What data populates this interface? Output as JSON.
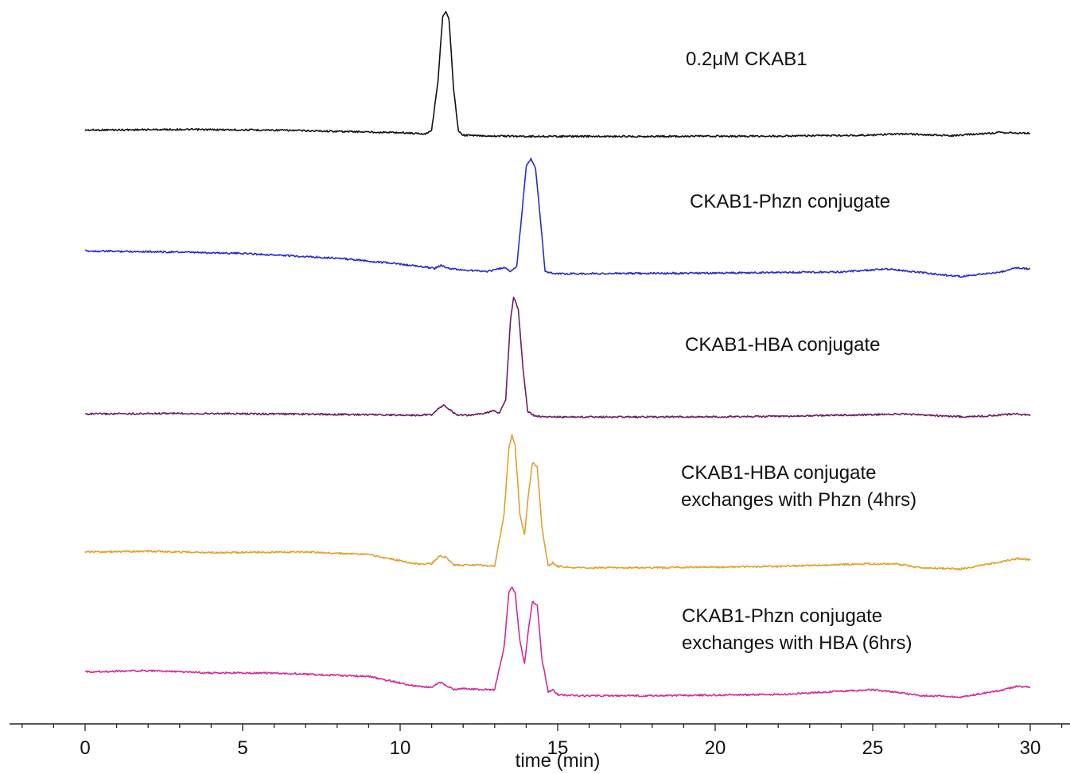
{
  "chart_data": {
    "type": "line",
    "title": "",
    "xlabel": "time (min)",
    "ylabel": "",
    "xlim": [
      -2.45,
      31.3
    ],
    "x_ticks": [
      "0",
      "5",
      "10",
      "15",
      "20",
      "25",
      "30"
    ],
    "x_tick_values": [
      0,
      5,
      10,
      15,
      20,
      25,
      30
    ],
    "grid": false,
    "legend": "none",
    "series": [
      {
        "name": "0.2μM CKAB1",
        "label_lines": [
          "0.2μM CKAB1"
        ],
        "color": "#111111",
        "x": [
          0,
          3,
          6,
          9,
          10,
          10.8,
          11.0,
          11.2,
          11.35,
          11.45,
          11.55,
          11.7,
          11.85,
          12.0,
          12.5,
          14,
          18,
          22,
          25,
          26,
          27.5,
          29,
          30
        ],
        "y": [
          0.06,
          0.065,
          0.06,
          0.045,
          0.04,
          0.03,
          0.06,
          0.45,
          0.96,
          1.0,
          0.94,
          0.38,
          0.05,
          0.02,
          0.015,
          0.01,
          0.01,
          0.012,
          0.02,
          0.03,
          0.015,
          0.04,
          0.035
        ]
      },
      {
        "name": "CKAB1-Phzn conjugate",
        "label_lines": [
          "CKAB1-Phzn conjugate"
        ],
        "color": "#2b2bc8",
        "x": [
          0,
          2,
          5,
          8,
          10,
          11.1,
          11.3,
          11.5,
          12,
          12.8,
          13.3,
          13.5,
          13.7,
          13.85,
          14.0,
          14.15,
          14.3,
          14.45,
          14.6,
          14.9,
          16,
          20,
          24,
          25.5,
          26.5,
          27.8,
          29,
          29.6,
          30
        ],
        "y": [
          0.23,
          0.225,
          0.21,
          0.17,
          0.12,
          0.085,
          0.11,
          0.085,
          0.07,
          0.06,
          0.09,
          0.06,
          0.1,
          0.5,
          0.94,
          1.0,
          0.92,
          0.5,
          0.06,
          0.04,
          0.04,
          0.045,
          0.055,
          0.08,
          0.05,
          0.015,
          0.05,
          0.09,
          0.08
        ]
      },
      {
        "name": "CKAB1-HBA conjugate",
        "label_lines": [
          "CKAB1-HBA conjugate"
        ],
        "color": "#6a1f62",
        "x": [
          0,
          3,
          6,
          9,
          10.5,
          11.0,
          11.25,
          11.4,
          11.55,
          11.8,
          12.3,
          12.75,
          12.95,
          13.15,
          13.35,
          13.5,
          13.6,
          13.75,
          13.9,
          14.05,
          14.3,
          15,
          18,
          22,
          26,
          28,
          29.5,
          30
        ],
        "y": [
          0.03,
          0.035,
          0.03,
          0.025,
          0.02,
          0.025,
          0.08,
          0.105,
          0.07,
          0.02,
          0.02,
          0.04,
          0.06,
          0.035,
          0.15,
          0.8,
          1.0,
          0.9,
          0.4,
          0.05,
          0.01,
          0.005,
          0.005,
          0.01,
          0.03,
          0.005,
          0.03,
          0.02
        ]
      },
      {
        "name": "CKAB1-HBA conjugate exchanges with Phzn (4hrs)",
        "label_lines": [
          "CKAB1-HBA conjugate",
          "exchanges with Phzn (4hrs)"
        ],
        "color": "#e0a030",
        "x": [
          0,
          2,
          4,
          7,
          9,
          10.5,
          11.0,
          11.25,
          11.45,
          11.7,
          12.0,
          12.5,
          13.0,
          13.3,
          13.45,
          13.55,
          13.65,
          13.8,
          13.95,
          14.05,
          14.2,
          14.35,
          14.5,
          14.7,
          14.85,
          15.0,
          15.5,
          18,
          22,
          25,
          25.7,
          26.5,
          27.8,
          29,
          29.6,
          30
        ],
        "y": [
          0.11,
          0.115,
          0.105,
          0.11,
          0.09,
          0.02,
          0.02,
          0.08,
          0.07,
          0.01,
          0.01,
          0.01,
          0.0,
          0.4,
          0.9,
          1.0,
          0.92,
          0.4,
          0.24,
          0.5,
          0.79,
          0.76,
          0.3,
          0.0,
          0.03,
          0.0,
          -0.01,
          -0.01,
          0.0,
          0.02,
          0.02,
          -0.01,
          -0.02,
          0.03,
          0.06,
          0.05
        ]
      },
      {
        "name": "CKAB1-Phzn conjugate exchanges with HBA (6hrs)",
        "label_lines": [
          "CKAB1-Phzn conjugate",
          "exchanges with HBA (6hrs)"
        ],
        "color": "#d02d98",
        "x": [
          0,
          2,
          4,
          6,
          9,
          10.5,
          11.0,
          11.25,
          11.45,
          11.7,
          12.0,
          12.5,
          13.0,
          13.3,
          13.45,
          13.55,
          13.65,
          13.8,
          13.95,
          14.05,
          14.2,
          14.35,
          14.5,
          14.7,
          14.85,
          15.0,
          15.5,
          18,
          22,
          25,
          25.7,
          26.5,
          27.8,
          29,
          29.6,
          30
        ],
        "y": [
          0.29,
          0.3,
          0.28,
          0.28,
          0.25,
          0.17,
          0.16,
          0.2,
          0.18,
          0.14,
          0.15,
          0.14,
          0.14,
          0.5,
          0.95,
          1.0,
          0.95,
          0.55,
          0.36,
          0.6,
          0.88,
          0.85,
          0.4,
          0.12,
          0.14,
          0.1,
          0.09,
          0.09,
          0.1,
          0.14,
          0.12,
          0.09,
          0.08,
          0.13,
          0.17,
          0.16
        ]
      }
    ]
  }
}
